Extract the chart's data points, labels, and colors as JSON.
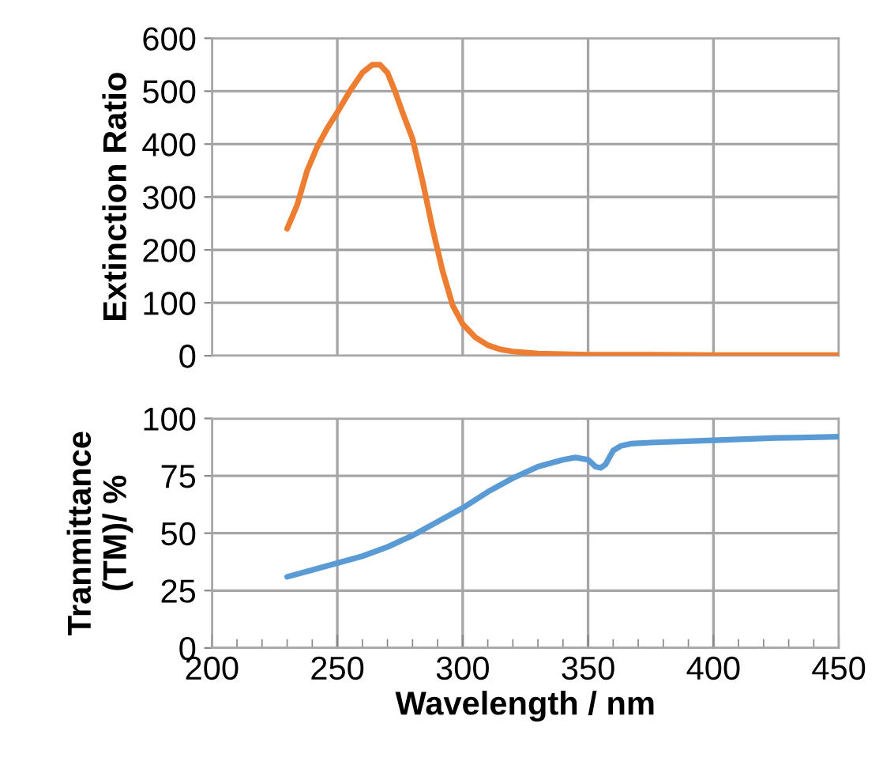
{
  "chart_data": [
    {
      "type": "line",
      "ylabel": "Extinction Ratio",
      "xlim": [
        200,
        450
      ],
      "xticks": [
        200,
        250,
        300,
        350,
        400,
        450
      ],
      "ylim": [
        0,
        600
      ],
      "yticks": [
        0,
        100,
        200,
        300,
        400,
        500,
        600
      ],
      "grid": true,
      "tick_labels": "y",
      "series": [
        {
          "color": "#ed7d31",
          "x": [
            230,
            234,
            238,
            242,
            246,
            250,
            255,
            260,
            264,
            267,
            270,
            273,
            276,
            280,
            284,
            288,
            292,
            296,
            300,
            305,
            310,
            315,
            320,
            330,
            340,
            350,
            375,
            400,
            425,
            450
          ],
          "values": [
            240,
            285,
            350,
            395,
            430,
            460,
            500,
            535,
            550,
            550,
            535,
            500,
            460,
            410,
            330,
            240,
            160,
            95,
            60,
            35,
            20,
            12,
            8,
            4,
            3,
            2,
            2,
            1,
            1,
            1
          ]
        }
      ]
    },
    {
      "type": "line",
      "ylabel": "Tranmittance\n(TM)/ %",
      "xlabel": "Wavelength / nm",
      "xlim": [
        200,
        450
      ],
      "xticks": [
        200,
        250,
        300,
        350,
        400,
        450
      ],
      "ylim": [
        0,
        100
      ],
      "yticks": [
        0,
        25,
        50,
        75,
        100
      ],
      "grid": true,
      "series": [
        {
          "color": "#5b9bd5",
          "x": [
            230,
            240,
            250,
            260,
            270,
            280,
            290,
            300,
            310,
            320,
            330,
            340,
            345,
            350,
            353,
            355,
            357,
            360,
            363,
            367,
            375,
            400,
            425,
            450
          ],
          "values": [
            31,
            34,
            37,
            40,
            44,
            49,
            55,
            61,
            68,
            74,
            79,
            82,
            83,
            82,
            79,
            78.5,
            80,
            86,
            88,
            89,
            89.5,
            90.5,
            91.5,
            92
          ]
        }
      ]
    }
  ]
}
